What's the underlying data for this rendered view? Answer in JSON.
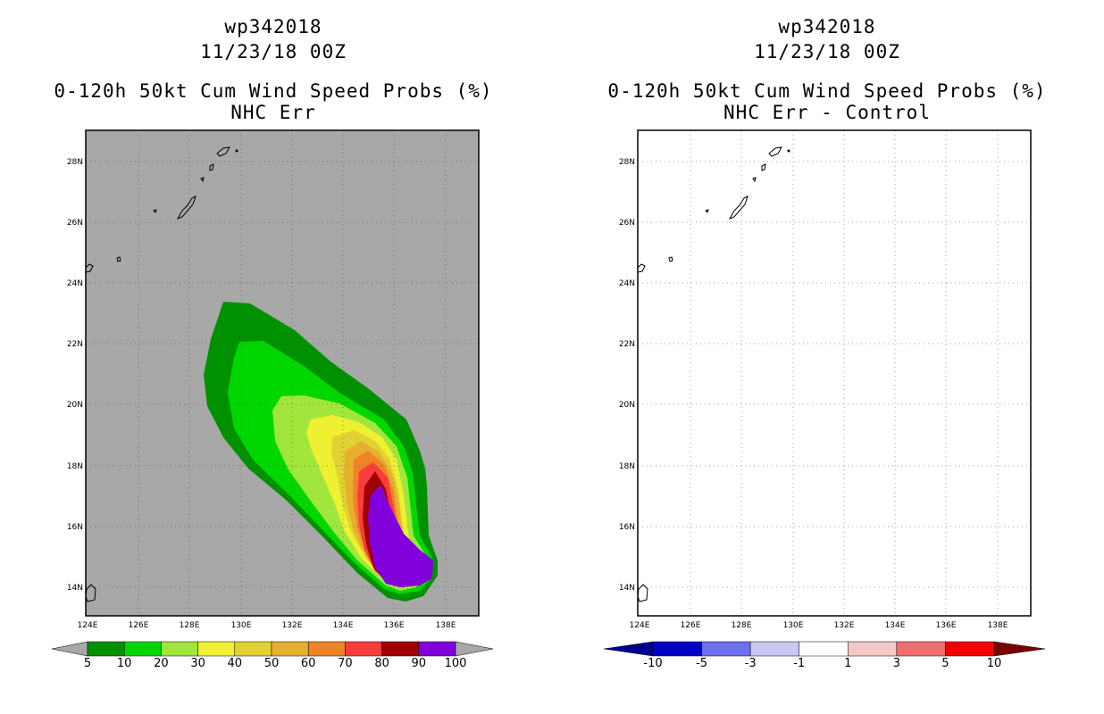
{
  "left": {
    "storm": "wp342018",
    "datetime": "11/23/18 00Z",
    "product": "0-120h 50kt Cum Wind Speed Probs (%)",
    "subtitle": "NHC Err",
    "background": "#a8a8a8",
    "colorbar": {
      "labels": [
        "5",
        "10",
        "20",
        "30",
        "40",
        "50",
        "60",
        "70",
        "80",
        "90",
        "100"
      ],
      "colors": [
        "#009100",
        "#00d700",
        "#a0e63c",
        "#f0f032",
        "#e1d232",
        "#e6af2d",
        "#f08228",
        "#fa3c3c",
        "#a00000",
        "#8200dc"
      ]
    }
  },
  "right": {
    "storm": "wp342018",
    "datetime": "11/23/18 00Z",
    "product": "0-120h 50kt Cum Wind Speed Probs (%)",
    "subtitle": "NHC Err - Control",
    "background": "#ffffff",
    "colorbar": {
      "labels": [
        "-10",
        "-5",
        "-3",
        "-1",
        "1",
        "3",
        "5",
        "10"
      ],
      "colors": [
        "#0000c8",
        "#6e6ef0",
        "#c8c8f5",
        "#ffffff",
        "#f5c8c8",
        "#f06e6e",
        "#f50000"
      ],
      "low_end": "#00008c",
      "high_end": "#780000"
    }
  },
  "axes": {
    "lon_labels": [
      "124E",
      "126E",
      "128E",
      "130E",
      "132E",
      "134E",
      "136E",
      "138E"
    ],
    "lat_labels": [
      "14N",
      "16N",
      "18N",
      "20N",
      "22N",
      "24N",
      "26N",
      "28N"
    ]
  }
}
